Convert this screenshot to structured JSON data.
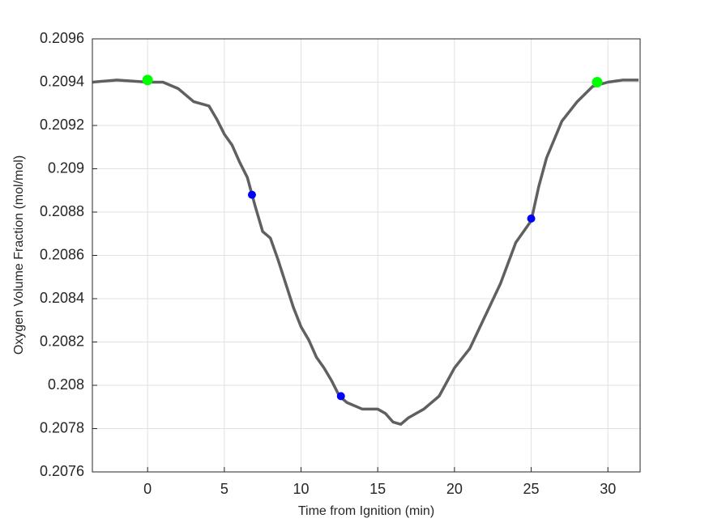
{
  "chart_data": {
    "type": "line",
    "xlabel": "Time from Ignition (min)",
    "ylabel": "Oxygen Volume Fraction (mol/mol)",
    "xlim": [
      -3.6,
      32.1
    ],
    "xticks": [
      0,
      5,
      10,
      15,
      20,
      25,
      30
    ],
    "ylim": [
      0.2076,
      0.2096
    ],
    "yticks": [
      0.2076,
      0.2078,
      0.208,
      0.2082,
      0.2084,
      0.2086,
      0.2088,
      0.209,
      0.2092,
      0.2094,
      0.2096
    ],
    "grid": true,
    "series": [
      {
        "color": "#606060",
        "marker": "line",
        "x": [
          -3.6,
          -2,
          0,
          1,
          2,
          3,
          4,
          4.5,
          5,
          5.5,
          6,
          6.5,
          7,
          7.5,
          8,
          8.5,
          9,
          9.5,
          10,
          10.5,
          11,
          11.5,
          12,
          12.5,
          13,
          14,
          15,
          15.5,
          16,
          16.5,
          17,
          18,
          19,
          20,
          21,
          22,
          23,
          24,
          25,
          25.5,
          26,
          27,
          28,
          29,
          30,
          31,
          32
        ],
        "values": [
          0.2094,
          0.20941,
          0.2094,
          0.2094,
          0.20937,
          0.20931,
          0.20929,
          0.20923,
          0.20916,
          0.20911,
          0.20903,
          0.20896,
          0.20883,
          0.20871,
          0.20868,
          0.20858,
          0.20847,
          0.20836,
          0.20827,
          0.20821,
          0.20813,
          0.20808,
          0.20802,
          0.20795,
          0.20792,
          0.20789,
          0.20789,
          0.20787,
          0.20783,
          0.20782,
          0.20785,
          0.20789,
          0.20795,
          0.20808,
          0.20817,
          0.20832,
          0.20847,
          0.20866,
          0.20876,
          0.20892,
          0.20905,
          0.20922,
          0.20931,
          0.20938,
          0.2094,
          0.20941,
          0.20941
        ]
      },
      {
        "color": "#00ff00",
        "marker": "dot",
        "size": 6.5,
        "x": [
          0,
          29.3
        ],
        "values": [
          0.20941,
          0.2094
        ]
      },
      {
        "color": "#0000ff",
        "marker": "dot",
        "size": 5,
        "x": [
          6.8,
          12.6,
          25
        ],
        "values": [
          0.20888,
          0.20795,
          0.20877
        ]
      }
    ]
  }
}
